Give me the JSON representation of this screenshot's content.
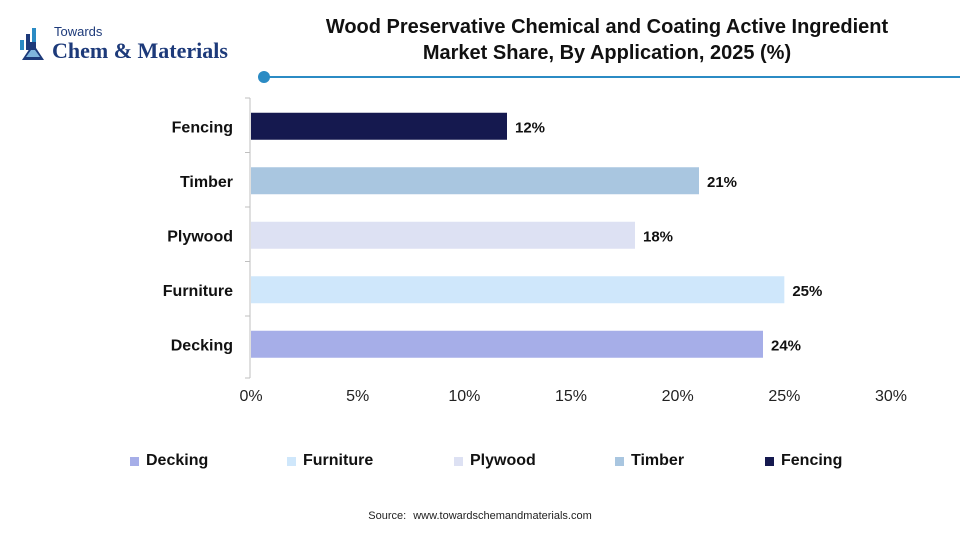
{
  "logo": {
    "small": "Towards",
    "big": "Chem & Materials"
  },
  "title": {
    "line1": "Wood Preservative Chemical and Coating Active Ingredient",
    "line2": "Market Share, By Application, 2025 (%)"
  },
  "source": {
    "label": "Source:",
    "url": "www.towardschemandmaterials.com"
  },
  "colors": {
    "accent": "#2b8bc4",
    "brand": "#1d3a7a"
  },
  "chart_data": {
    "type": "bar",
    "orientation": "horizontal",
    "categories": [
      "Fencing",
      "Timber",
      "Plywood",
      "Furniture",
      "Decking"
    ],
    "values": [
      12,
      21,
      18,
      25,
      24
    ],
    "value_labels": [
      "12%",
      "21%",
      "18%",
      "25%",
      "24%"
    ],
    "colors": [
      "#15194f",
      "#a9c6e0",
      "#dde1f3",
      "#cfe7fb",
      "#a6aee8"
    ],
    "xlim": [
      0,
      30
    ],
    "xticks": [
      0,
      5,
      10,
      15,
      20,
      25,
      30
    ],
    "xtick_labels": [
      "0%",
      "5%",
      "10%",
      "15%",
      "20%",
      "25%",
      "30%"
    ],
    "grid": false,
    "legend_placement": "bottom",
    "legend": [
      {
        "name": "Decking",
        "color": "#a6aee8"
      },
      {
        "name": "Furniture",
        "color": "#cfe7fb"
      },
      {
        "name": "Plywood",
        "color": "#dde1f3"
      },
      {
        "name": "Timber",
        "color": "#a9c6e0"
      },
      {
        "name": "Fencing",
        "color": "#15194f"
      }
    ]
  }
}
